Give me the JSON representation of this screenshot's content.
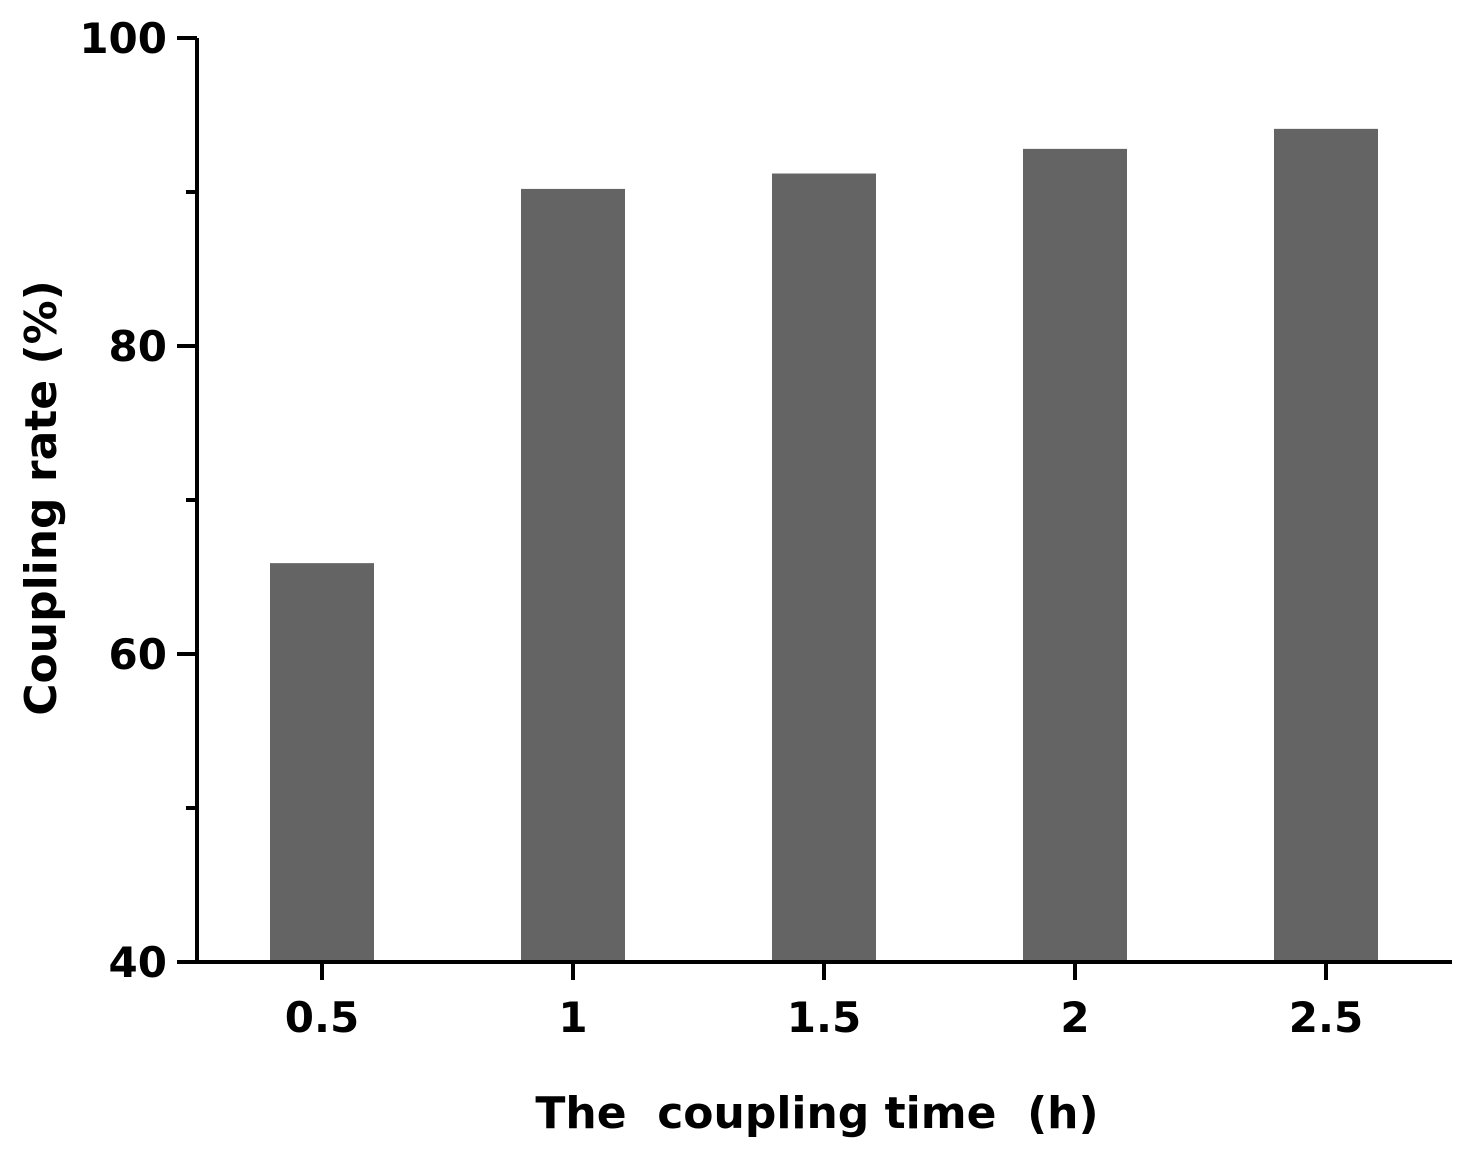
{
  "chart_data": {
    "type": "bar",
    "title": "",
    "xlabel": "The  coupling time  (h)",
    "ylabel": "Coupling rate (%)",
    "categories": [
      "0.5",
      "1",
      "1.5",
      "2",
      "2.5"
    ],
    "values": [
      65.9,
      90.2,
      91.2,
      92.8,
      94.1
    ],
    "ylim": [
      40,
      100
    ],
    "yticks": [
      40,
      60,
      80,
      100
    ],
    "yticks_minor": [
      50,
      70,
      90
    ],
    "ytick_labels": [
      "40",
      "60",
      "80",
      "100"
    ],
    "bar_color": "#646464",
    "axis_color": "#000000",
    "grid": false,
    "legend": "none"
  }
}
